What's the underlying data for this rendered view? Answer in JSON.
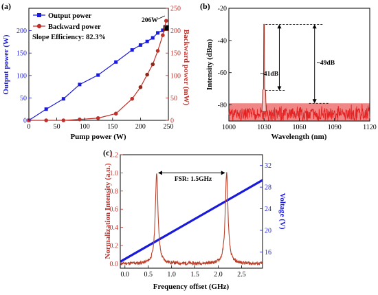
{
  "panels": {
    "a": "(a)",
    "b": "(b)",
    "c": "(c)"
  },
  "chart_data": [
    {
      "id": "a",
      "type": "line",
      "xlabel": "Pump power (W)",
      "ylabel_left": "Output power (W)",
      "ylabel_right": "Backward power (mW)",
      "xlim": [
        0,
        250
      ],
      "xticks": [
        0,
        50,
        100,
        150,
        200,
        250
      ],
      "ylim_left": [
        0,
        250
      ],
      "yticks_left": [
        0,
        50,
        100,
        150,
        200
      ],
      "ylim_right": [
        0,
        250
      ],
      "yticks_right": [
        0,
        50,
        100,
        150,
        200,
        250
      ],
      "legend_position": "top-left",
      "annotation_text": "Slope Efficiency: 82.3%",
      "point_label": "206W",
      "colors": {
        "output": "#1a1adb",
        "backward": "#c0302a",
        "backward_marker": "#8b2a1a"
      },
      "series": [
        {
          "name": "Output power",
          "axis": "left",
          "marker": "square",
          "x": [
            0,
            31,
            62,
            91,
            124,
            156,
            185,
            200,
            212,
            222,
            231,
            240,
            246
          ],
          "y": [
            0,
            25,
            48,
            80,
            101,
            130,
            157,
            168,
            176,
            184,
            195,
            201,
            206
          ]
        },
        {
          "name": "Backward power",
          "axis": "right",
          "marker": "circle",
          "x": [
            0,
            31,
            62,
            91,
            124,
            156,
            185,
            200,
            212,
            222,
            231,
            240,
            246
          ],
          "y": [
            0,
            0,
            0,
            2,
            5,
            15,
            48,
            74,
            102,
            125,
            155,
            190,
            222
          ]
        }
      ]
    },
    {
      "id": "b",
      "type": "line",
      "xlabel": "Wavelength (nm)",
      "ylabel": "Intensity (dBm)",
      "xlim": [
        1000,
        1120
      ],
      "xticks": [
        1000,
        1030,
        1060,
        1090,
        1120
      ],
      "ylim": [
        -90,
        -20
      ],
      "yticks": [
        -80,
        -60,
        -40,
        -20
      ],
      "peak_wavelength": 1030,
      "peak_level": -30,
      "sidelobe_level": -71,
      "noise_floor": -79,
      "label_41": "~41dB",
      "label_49": "~49dB",
      "colors": {
        "spectrum": "#e32222",
        "peak": "#a03020"
      }
    },
    {
      "id": "c",
      "type": "line",
      "xlabel": "Frequency offset (GHz)",
      "ylabel_left": "Normalization Intensity (a.u.)",
      "ylabel_right": "Voltage (V)",
      "xlim": [
        -0.1,
        2.95
      ],
      "xticks": [
        0.0,
        0.5,
        1.0,
        1.5,
        2.0,
        2.5
      ],
      "ylim_left": [
        -0.05,
        1.2
      ],
      "yticks_left": [
        0.0,
        0.2,
        0.4,
        0.6,
        0.8,
        1.0,
        1.2
      ],
      "ylim_right": [
        13,
        34
      ],
      "yticks_right": [
        16,
        20,
        24,
        28,
        32
      ],
      "peaks_x": [
        0.68,
        2.18
      ],
      "fsr_label": "FSR: 1.5GHz",
      "voltage_line": {
        "x": [
          -0.1,
          2.95
        ],
        "y": [
          14.2,
          29.3
        ]
      },
      "colors": {
        "intensity": "#b8402a",
        "voltage": "#1a1adb",
        "axis_left": "#c0302a",
        "axis_right": "#1a1adb"
      }
    }
  ]
}
